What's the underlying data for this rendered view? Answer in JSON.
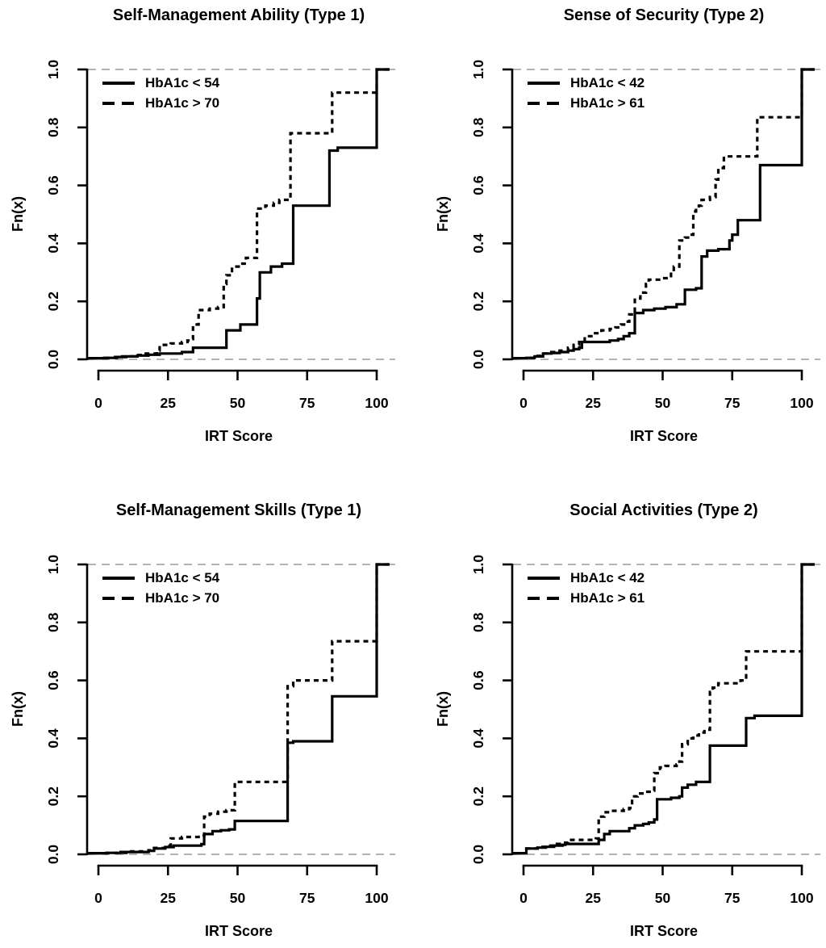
{
  "figure": {
    "background_color": "#ffffff",
    "curve_color": "#000000",
    "reference_line_color": "#b3b3b3"
  },
  "chart_data": [
    {
      "type": "line",
      "subtype": "ecdf_step",
      "title": "Self-Management Ability (Type 1)",
      "xlabel": "IRT Score",
      "ylabel": "Fn(x)",
      "xlim": [
        0,
        100
      ],
      "ylim": [
        0,
        1
      ],
      "xticks": [
        0,
        25,
        50,
        75,
        100
      ],
      "yticks": [
        0,
        0.2,
        0.4,
        0.6,
        0.8,
        1.0
      ],
      "ytick_labels": [
        "0.0",
        "0.2",
        "0.4",
        "0.6",
        "0.8",
        "1.0"
      ],
      "grid": false,
      "legend_position": "top-left",
      "reference_lines_y": [
        0,
        1
      ],
      "series": [
        {
          "name": "HbA1c < 54",
          "line_style": "solid",
          "points": [
            [
              2,
              0.005
            ],
            [
              6,
              0.008
            ],
            [
              10,
              0.01
            ],
            [
              14,
              0.013
            ],
            [
              18,
              0.016
            ],
            [
              22,
              0.02
            ],
            [
              30,
              0.025
            ],
            [
              34,
              0.04
            ],
            [
              46,
              0.1
            ],
            [
              51,
              0.12
            ],
            [
              57,
              0.21
            ],
            [
              58,
              0.3
            ],
            [
              62,
              0.32
            ],
            [
              66,
              0.33
            ],
            [
              70,
              0.53
            ],
            [
              83,
              0.72
            ],
            [
              86,
              0.73
            ],
            [
              100,
              1.0
            ]
          ]
        },
        {
          "name": "HbA1c > 70",
          "line_style": "dashed",
          "points": [
            [
              3,
              0.005
            ],
            [
              8,
              0.01
            ],
            [
              13,
              0.015
            ],
            [
              17,
              0.02
            ],
            [
              21,
              0.03
            ],
            [
              22,
              0.05
            ],
            [
              26,
              0.055
            ],
            [
              30,
              0.06
            ],
            [
              32,
              0.065
            ],
            [
              33,
              0.07
            ],
            [
              34,
              0.12
            ],
            [
              36,
              0.17
            ],
            [
              40,
              0.175
            ],
            [
              43,
              0.18
            ],
            [
              45,
              0.26
            ],
            [
              46,
              0.29
            ],
            [
              48,
              0.32
            ],
            [
              51,
              0.33
            ],
            [
              53,
              0.35
            ],
            [
              57,
              0.52
            ],
            [
              60,
              0.53
            ],
            [
              63,
              0.54
            ],
            [
              65,
              0.55
            ],
            [
              69,
              0.78
            ],
            [
              84,
              0.92
            ],
            [
              100,
              1.0
            ]
          ]
        }
      ]
    },
    {
      "type": "line",
      "subtype": "ecdf_step",
      "title": "Sense of Security (Type 2)",
      "xlabel": "IRT Score",
      "ylabel": "Fn(x)",
      "xlim": [
        0,
        100
      ],
      "ylim": [
        0,
        1
      ],
      "xticks": [
        0,
        25,
        50,
        75,
        100
      ],
      "yticks": [
        0,
        0.2,
        0.4,
        0.6,
        0.8,
        1.0
      ],
      "ytick_labels": [
        "0.0",
        "0.2",
        "0.4",
        "0.6",
        "0.8",
        "1.0"
      ],
      "grid": false,
      "legend_position": "top-left",
      "reference_lines_y": [
        0,
        1
      ],
      "series": [
        {
          "name": "HbA1c < 42",
          "line_style": "solid",
          "points": [
            [
              1,
              0.005
            ],
            [
              4,
              0.01
            ],
            [
              7,
              0.02
            ],
            [
              10,
              0.022
            ],
            [
              13,
              0.025
            ],
            [
              16,
              0.03
            ],
            [
              18,
              0.035
            ],
            [
              20,
              0.04
            ],
            [
              21,
              0.06
            ],
            [
              31,
              0.065
            ],
            [
              34,
              0.07
            ],
            [
              36,
              0.08
            ],
            [
              38,
              0.09
            ],
            [
              40,
              0.16
            ],
            [
              43,
              0.17
            ],
            [
              47,
              0.175
            ],
            [
              51,
              0.18
            ],
            [
              55,
              0.19
            ],
            [
              58,
              0.24
            ],
            [
              62,
              0.245
            ],
            [
              64,
              0.355
            ],
            [
              66,
              0.375
            ],
            [
              70,
              0.38
            ],
            [
              74,
              0.41
            ],
            [
              75,
              0.43
            ],
            [
              77,
              0.48
            ],
            [
              85,
              0.67
            ],
            [
              100,
              1.0
            ]
          ]
        },
        {
          "name": "HbA1c > 61",
          "line_style": "dashed",
          "points": [
            [
              1,
              0.005
            ],
            [
              4,
              0.012
            ],
            [
              7,
              0.02
            ],
            [
              10,
              0.025
            ],
            [
              13,
              0.03
            ],
            [
              16,
              0.04
            ],
            [
              18,
              0.05
            ],
            [
              20,
              0.06
            ],
            [
              22,
              0.08
            ],
            [
              25,
              0.09
            ],
            [
              28,
              0.1
            ],
            [
              31,
              0.105
            ],
            [
              33,
              0.11
            ],
            [
              35,
              0.12
            ],
            [
              37,
              0.13
            ],
            [
              38,
              0.155
            ],
            [
              40,
              0.21
            ],
            [
              42,
              0.23
            ],
            [
              44,
              0.26
            ],
            [
              45,
              0.275
            ],
            [
              50,
              0.28
            ],
            [
              53,
              0.3
            ],
            [
              54,
              0.32
            ],
            [
              56,
              0.41
            ],
            [
              58,
              0.42
            ],
            [
              60,
              0.43
            ],
            [
              61,
              0.51
            ],
            [
              62,
              0.52
            ],
            [
              63,
              0.53
            ],
            [
              64,
              0.55
            ],
            [
              67,
              0.56
            ],
            [
              69,
              0.62
            ],
            [
              70,
              0.66
            ],
            [
              72,
              0.7
            ],
            [
              84,
              0.835
            ],
            [
              100,
              1.0
            ]
          ]
        }
      ]
    },
    {
      "type": "line",
      "subtype": "ecdf_step",
      "title": "Self-Management Skills (Type 1)",
      "xlabel": "IRT Score",
      "ylabel": "Fn(x)",
      "xlim": [
        0,
        100
      ],
      "ylim": [
        0,
        1
      ],
      "xticks": [
        0,
        25,
        50,
        75,
        100
      ],
      "yticks": [
        0,
        0.2,
        0.4,
        0.6,
        0.8,
        1.0
      ],
      "ytick_labels": [
        "0.0",
        "0.2",
        "0.4",
        "0.6",
        "0.8",
        "1.0"
      ],
      "grid": false,
      "legend_position": "top-left",
      "reference_lines_y": [
        0,
        1
      ],
      "series": [
        {
          "name": "HbA1c < 54",
          "line_style": "solid",
          "points": [
            [
              3,
              0.005
            ],
            [
              8,
              0.008
            ],
            [
              18,
              0.012
            ],
            [
              20,
              0.02
            ],
            [
              24,
              0.025
            ],
            [
              27,
              0.03
            ],
            [
              37,
              0.035
            ],
            [
              38,
              0.07
            ],
            [
              41,
              0.08
            ],
            [
              44,
              0.083
            ],
            [
              47,
              0.086
            ],
            [
              49,
              0.115
            ],
            [
              68,
              0.385
            ],
            [
              70,
              0.39
            ],
            [
              84,
              0.545
            ],
            [
              100,
              1.0
            ]
          ]
        },
        {
          "name": "HbA1c > 70",
          "line_style": "dashed",
          "points": [
            [
              3,
              0.005
            ],
            [
              10,
              0.01
            ],
            [
              18,
              0.014
            ],
            [
              20,
              0.022
            ],
            [
              24,
              0.03
            ],
            [
              26,
              0.055
            ],
            [
              30,
              0.06
            ],
            [
              36,
              0.065
            ],
            [
              38,
              0.13
            ],
            [
              40,
              0.14
            ],
            [
              43,
              0.147
            ],
            [
              46,
              0.152
            ],
            [
              49,
              0.25
            ],
            [
              68,
              0.58
            ],
            [
              70,
              0.6
            ],
            [
              84,
              0.735
            ],
            [
              100,
              1.0
            ]
          ]
        }
      ]
    },
    {
      "type": "line",
      "subtype": "ecdf_step",
      "title": "Social Activities (Type 2)",
      "xlabel": "IRT Score",
      "ylabel": "Fn(x)",
      "xlim": [
        0,
        100
      ],
      "ylim": [
        0,
        1
      ],
      "xticks": [
        0,
        25,
        50,
        75,
        100
      ],
      "yticks": [
        0,
        0.2,
        0.4,
        0.6,
        0.8,
        1.0
      ],
      "ytick_labels": [
        "0.0",
        "0.2",
        "0.4",
        "0.6",
        "0.8",
        "1.0"
      ],
      "grid": false,
      "legend_position": "top-left",
      "reference_lines_y": [
        0,
        1
      ],
      "series": [
        {
          "name": "HbA1c < 42",
          "line_style": "solid",
          "points": [
            [
              1,
              0.02
            ],
            [
              5,
              0.023
            ],
            [
              8,
              0.026
            ],
            [
              11,
              0.03
            ],
            [
              14,
              0.033
            ],
            [
              15,
              0.036
            ],
            [
              27,
              0.05
            ],
            [
              29,
              0.07
            ],
            [
              31,
              0.08
            ],
            [
              38,
              0.09
            ],
            [
              40,
              0.1
            ],
            [
              43,
              0.105
            ],
            [
              45,
              0.11
            ],
            [
              47,
              0.12
            ],
            [
              48,
              0.19
            ],
            [
              53,
              0.195
            ],
            [
              56,
              0.2
            ],
            [
              57,
              0.23
            ],
            [
              59,
              0.24
            ],
            [
              62,
              0.25
            ],
            [
              67,
              0.375
            ],
            [
              80,
              0.47
            ],
            [
              83,
              0.478
            ],
            [
              100,
              1.0
            ]
          ]
        },
        {
          "name": "HbA1c > 61",
          "line_style": "dashed",
          "points": [
            [
              1,
              0.02
            ],
            [
              5,
              0.026
            ],
            [
              9,
              0.03
            ],
            [
              12,
              0.036
            ],
            [
              14,
              0.04
            ],
            [
              16,
              0.05
            ],
            [
              26,
              0.055
            ],
            [
              27,
              0.13
            ],
            [
              29,
              0.145
            ],
            [
              31,
              0.15
            ],
            [
              36,
              0.156
            ],
            [
              38,
              0.16
            ],
            [
              39,
              0.2
            ],
            [
              41,
              0.21
            ],
            [
              44,
              0.216
            ],
            [
              46,
              0.22
            ],
            [
              47,
              0.28
            ],
            [
              49,
              0.3
            ],
            [
              51,
              0.305
            ],
            [
              55,
              0.31
            ],
            [
              56,
              0.32
            ],
            [
              57,
              0.38
            ],
            [
              59,
              0.4
            ],
            [
              61,
              0.41
            ],
            [
              63,
              0.42
            ],
            [
              65,
              0.43
            ],
            [
              67,
              0.56
            ],
            [
              68,
              0.575
            ],
            [
              70,
              0.59
            ],
            [
              78,
              0.6
            ],
            [
              80,
              0.7
            ],
            [
              100,
              1.0
            ]
          ]
        }
      ]
    }
  ]
}
